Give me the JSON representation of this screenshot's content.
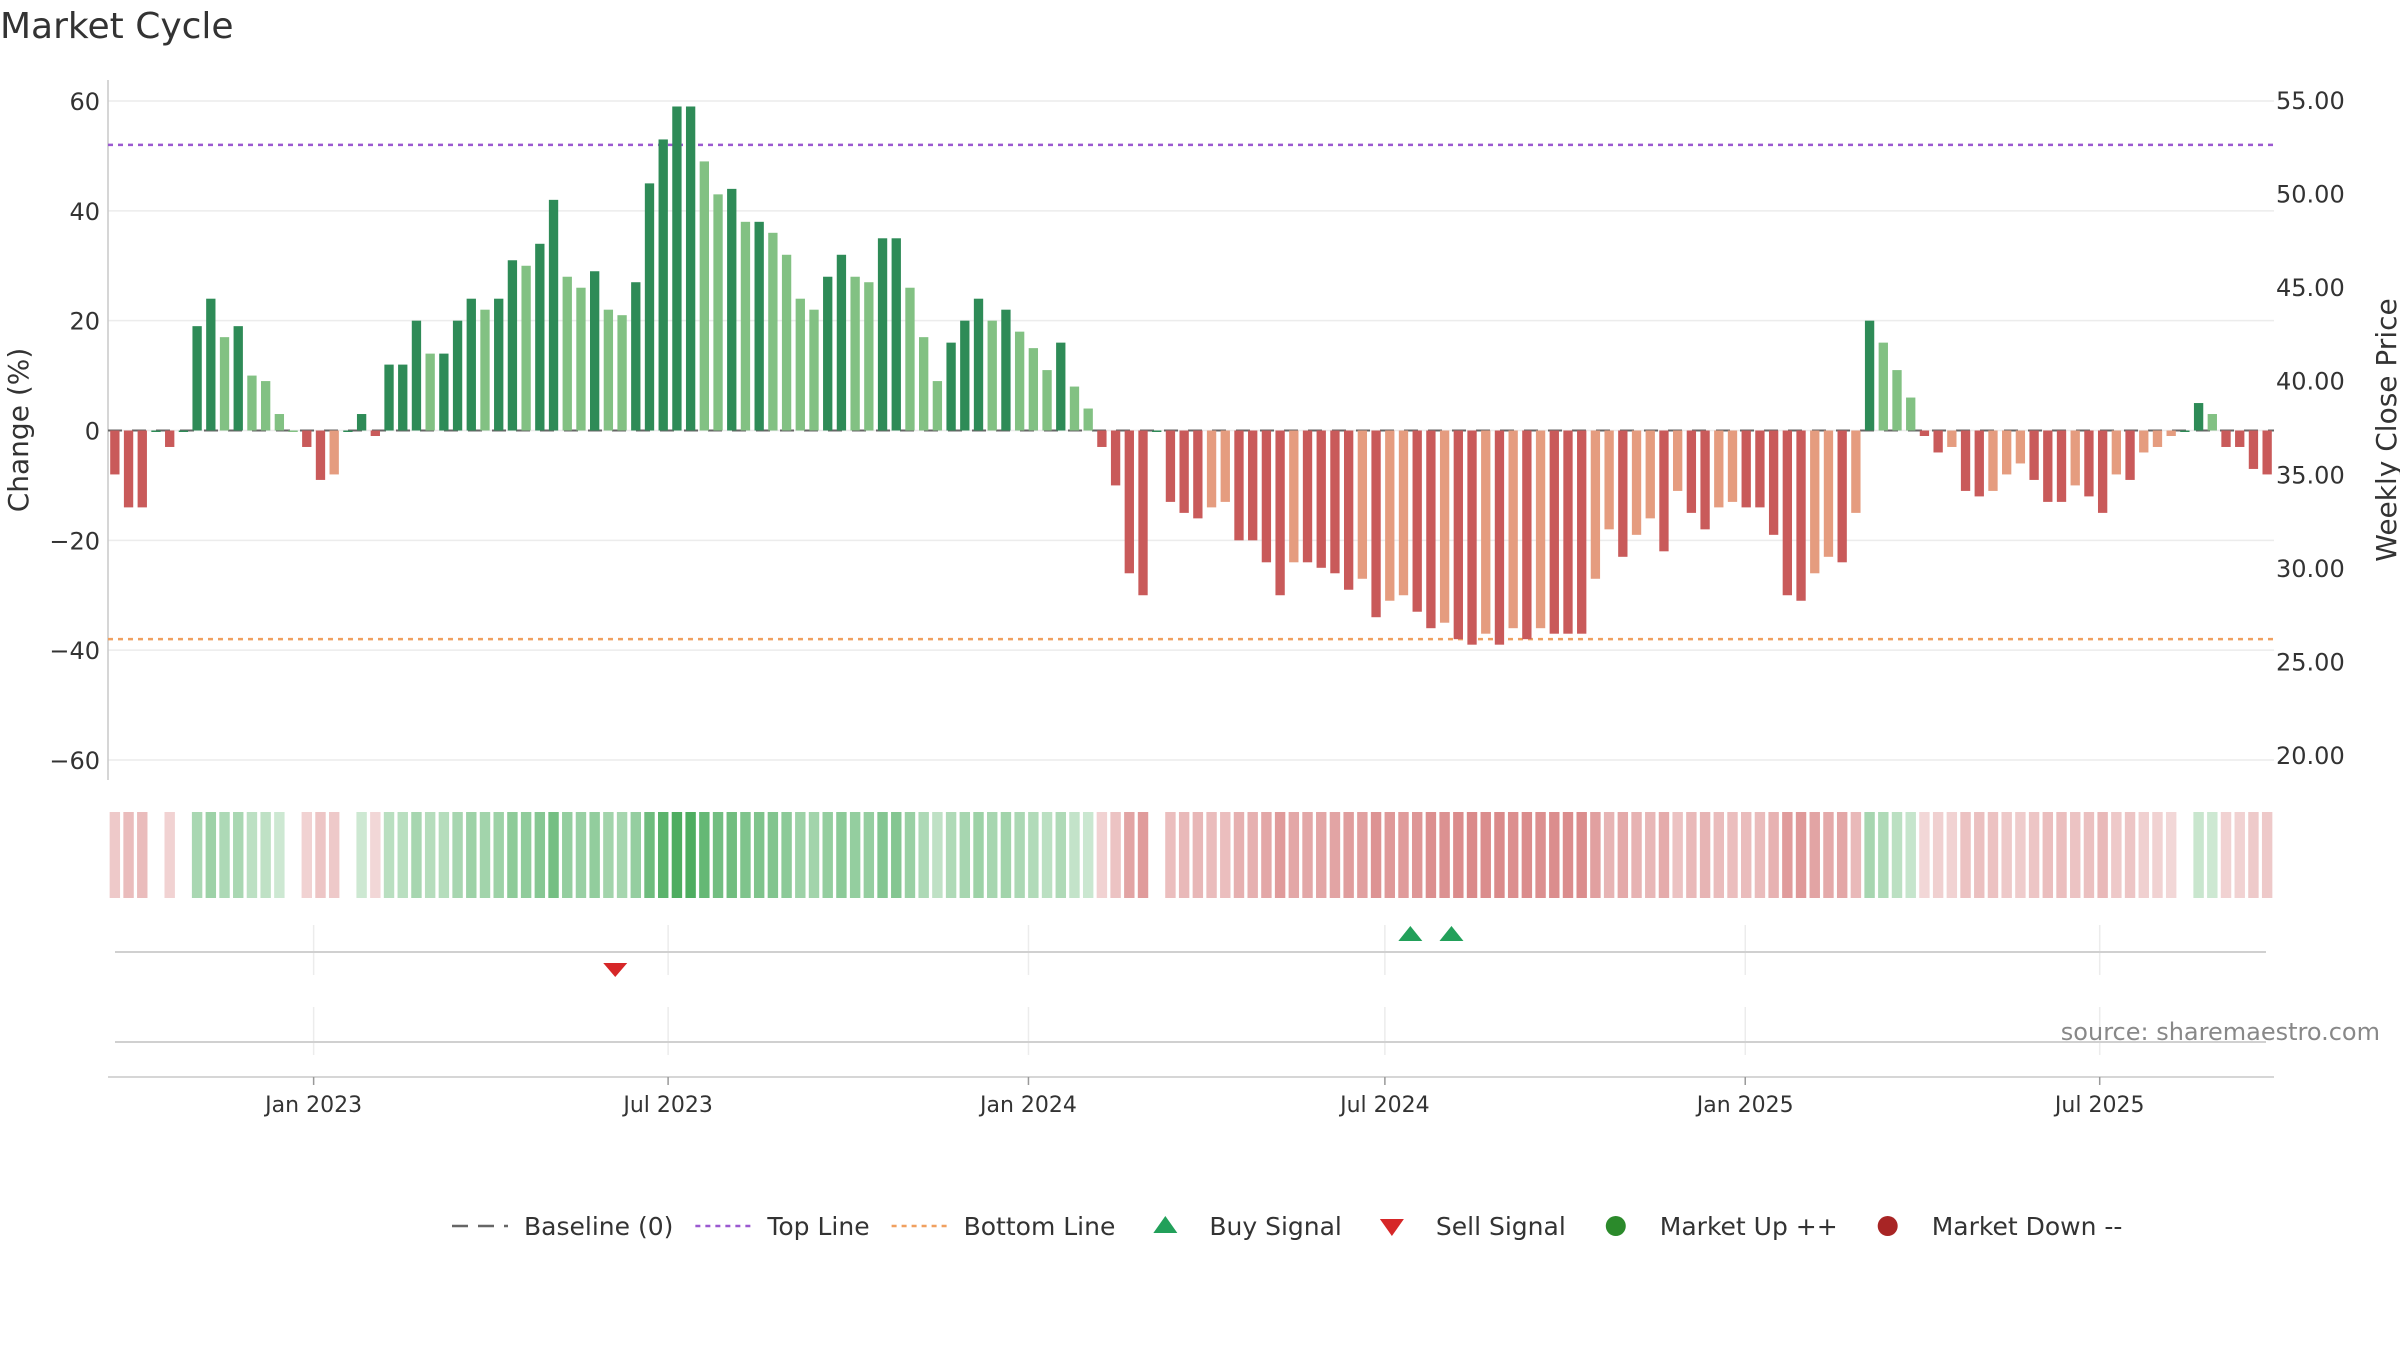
{
  "title": "Market Cycle",
  "source": "source: sharemaestro.com",
  "colors": {
    "up_strong": "#2e8b57",
    "up_light": "#82c183",
    "down_strong": "#c95a5a",
    "down_light": "#e59c7f",
    "top_line": "#9b59d0",
    "bottom_line": "#f0a060",
    "buy": "#22a05a",
    "sell": "#d62728",
    "market_up": "#2b8a2b",
    "market_down": "#a82525"
  },
  "legend": [
    {
      "label": "Baseline (0)",
      "symbol": "dash"
    },
    {
      "label": "Top Line",
      "symbol": "dotted-purple"
    },
    {
      "label": "Bottom Line",
      "symbol": "dotted-orange"
    },
    {
      "label": "Buy Signal",
      "symbol": "triangle-up"
    },
    {
      "label": "Sell Signal",
      "symbol": "triangle-down"
    },
    {
      "label": "Market Up ++",
      "symbol": "circle-green"
    },
    {
      "label": "Market Down --",
      "symbol": "circle-red"
    }
  ],
  "chart_data": {
    "type": "bar",
    "ylabel_left": "Change (%)",
    "ylabel_right": "Weekly Close Price",
    "ylim_left": [
      -60,
      60
    ],
    "yticks_left": [
      "60",
      "40",
      "20",
      "0",
      "−20",
      "−40",
      "−60"
    ],
    "ylim_right": [
      20,
      55
    ],
    "yticks_right": [
      "55.00",
      "50.00",
      "45.00",
      "40.00",
      "35.00",
      "30.00",
      "25.00",
      "20.00"
    ],
    "x_start": "2022-09-18",
    "x_end": "2025-09-28",
    "x_ticks": [
      {
        "date": "2023-01-01",
        "label": "Jan 2023"
      },
      {
        "date": "2023-07-01",
        "label": "Jul 2023"
      },
      {
        "date": "2024-01-01",
        "label": "Jan 2024"
      },
      {
        "date": "2024-07-01",
        "label": "Jul 2024"
      },
      {
        "date": "2025-01-01",
        "label": "Jan 2025"
      },
      {
        "date": "2025-07-01",
        "label": "Jul 2025"
      }
    ],
    "top_line": 52,
    "bottom_line": -38,
    "grid": true,
    "legend_position": "bottom",
    "weekly_change": [
      -8,
      -14,
      -14,
      0,
      -3,
      0,
      19,
      24,
      17,
      19,
      10,
      9,
      3,
      0,
      -3,
      -9,
      -8,
      0,
      3,
      -1,
      12,
      12,
      20,
      14,
      14,
      20,
      24,
      22,
      24,
      31,
      30,
      34,
      42,
      28,
      26,
      29,
      22,
      21,
      27,
      45,
      53,
      59,
      59,
      49,
      43,
      44,
      38,
      38,
      36,
      32,
      24,
      22,
      28,
      32,
      28,
      27,
      35,
      35,
      26,
      17,
      9,
      16,
      20,
      24,
      20,
      22,
      18,
      15,
      11,
      16,
      8,
      4,
      -3,
      -10,
      -26,
      -30,
      0,
      -13,
      -15,
      -16,
      -14,
      -13,
      -20,
      -20,
      -24,
      -30,
      -24,
      -24,
      -25,
      -26,
      -29,
      -27,
      -34,
      -31,
      -30,
      -33,
      -36,
      -35,
      -38,
      -39,
      -37,
      -39,
      -36,
      -38,
      -36,
      -37,
      -37,
      -37,
      -27,
      -18,
      -23,
      -19,
      -16,
      -22,
      -11,
      -15,
      -18,
      -14,
      -13,
      -14,
      -14,
      -19,
      -30,
      -31,
      -26,
      -23,
      -24,
      -15,
      20,
      16,
      11,
      6,
      -1,
      -4,
      -3,
      -11,
      -12,
      -11,
      -8,
      -6,
      -9,
      -13,
      -13,
      -10,
      -12,
      -15,
      -8,
      -9,
      -4,
      -3,
      -1,
      0,
      5,
      3,
      -3,
      -3,
      -7,
      -8
    ],
    "buy_signals": [
      "2024-07-14",
      "2024-08-04"
    ],
    "sell_signals": [
      "2023-06-04"
    ]
  }
}
